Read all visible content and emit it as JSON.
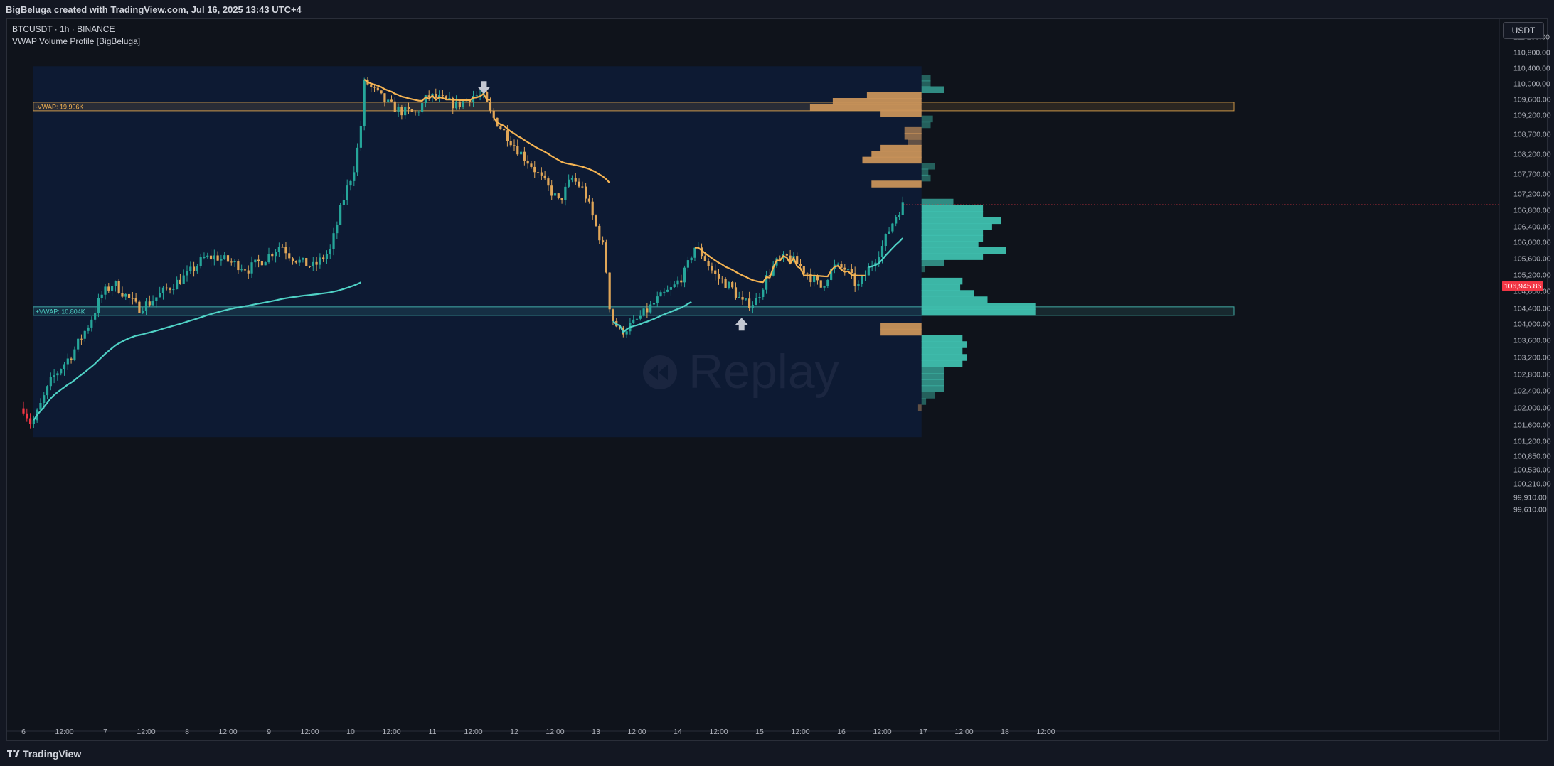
{
  "app": {
    "attribution": "BigBeluga created with TradingView.com, Jul 16, 2025 13:43 UTC+4",
    "brand": "TradingView",
    "brand_icon": "tradingview-logo-icon"
  },
  "header": {
    "symbol_line": "BTCUSDT · 1h · BINANCE",
    "indicator_line": "VWAP Volume Profile [BigBeluga]"
  },
  "currency_button": "USDT",
  "last_price": "106,945.86",
  "watermark": "Replay",
  "watermark_icon": "replay-icon",
  "chart_data": {
    "type": "candlestick",
    "title": "BTCUSDT · 1h · BINANCE",
    "y_axis_ticks": [
      "111,200.00",
      "110,800.00",
      "110,400.00",
      "110,000.00",
      "109,600.00",
      "109,200.00",
      "108,700.00",
      "108,200.00",
      "107,700.00",
      "107,200.00",
      "106,800.00",
      "106,400.00",
      "106,000.00",
      "105,600.00",
      "105,200.00",
      "104,800.00",
      "104,400.00",
      "104,000.00",
      "103,600.00",
      "103,200.00",
      "102,800.00",
      "102,400.00",
      "102,000.00",
      "101,600.00",
      "101,200.00",
      "100,850.00",
      "100,530.00",
      "100,210.00",
      "99,910.00",
      "99,610.00"
    ],
    "x_axis_ticks": [
      "6",
      "12:00",
      "7",
      "12:00",
      "8",
      "12:00",
      "9",
      "12:00",
      "10",
      "12:00",
      "11",
      "12:00",
      "12",
      "12:00",
      "13",
      "12:00",
      "14",
      "12:00",
      "15",
      "12:00",
      "16",
      "12:00",
      "17",
      "12:00",
      "18",
      "12:00"
    ],
    "vwap_labels": {
      "upper": "-VWAP: 19.906K",
      "lower": "+VWAP: 10.804K"
    },
    "upper_vwap_price": 109420,
    "lower_vwap_price": 104330,
    "last_price": 106945.86,
    "colors": {
      "bull": "#26a69a",
      "bear": "#e0a658",
      "pre_window": "#f23645",
      "vwap_up": "#4fd1c5",
      "vwap_down": "#f5b453",
      "profile_up": "#3fbfae",
      "profile_down": "#c8925a",
      "panel": "#0d1a33",
      "background": "#0f131b"
    },
    "signals": [
      {
        "direction": "down",
        "icon": "arrow-down-icon",
        "day": 11.63,
        "price": 109850
      },
      {
        "direction": "up",
        "icon": "arrow-up-icon",
        "day": 14.78,
        "price": 104050
      }
    ],
    "price_path": [
      [
        6.0,
        102000
      ],
      [
        6.1,
        101600
      ],
      [
        6.15,
        101800
      ],
      [
        6.35,
        102700
      ],
      [
        6.6,
        103300
      ],
      [
        6.8,
        104000
      ],
      [
        6.95,
        104700
      ],
      [
        7.1,
        105000
      ],
      [
        7.25,
        104700
      ],
      [
        7.4,
        104400
      ],
      [
        7.55,
        104550
      ],
      [
        7.75,
        104850
      ],
      [
        8.0,
        105200
      ],
      [
        8.2,
        105600
      ],
      [
        8.35,
        105650
      ],
      [
        8.55,
        105500
      ],
      [
        8.75,
        105350
      ],
      [
        8.95,
        105600
      ],
      [
        9.15,
        105950
      ],
      [
        9.25,
        105700
      ],
      [
        9.4,
        105500
      ],
      [
        9.55,
        105400
      ],
      [
        9.75,
        105800
      ],
      [
        9.9,
        107000
      ],
      [
        10.05,
        107900
      ],
      [
        10.12,
        108800
      ],
      [
        10.17,
        110100
      ],
      [
        10.25,
        109900
      ],
      [
        10.45,
        109500
      ],
      [
        10.6,
        109300
      ],
      [
        10.8,
        109250
      ],
      [
        10.95,
        109700
      ],
      [
        11.1,
        109600
      ],
      [
        11.3,
        109450
      ],
      [
        11.5,
        109700
      ],
      [
        11.62,
        109700
      ],
      [
        11.72,
        109200
      ],
      [
        11.9,
        108700
      ],
      [
        12.05,
        108300
      ],
      [
        12.2,
        107950
      ],
      [
        12.4,
        107400
      ],
      [
        12.55,
        107000
      ],
      [
        12.7,
        107600
      ],
      [
        12.85,
        107300
      ],
      [
        13.0,
        106400
      ],
      [
        13.1,
        105800
      ],
      [
        13.18,
        104200
      ],
      [
        13.3,
        103800
      ],
      [
        13.45,
        104000
      ],
      [
        13.6,
        104300
      ],
      [
        13.75,
        104600
      ],
      [
        13.95,
        104900
      ],
      [
        14.1,
        105300
      ],
      [
        14.2,
        105900
      ],
      [
        14.3,
        105700
      ],
      [
        14.45,
        105200
      ],
      [
        14.65,
        104900
      ],
      [
        14.8,
        104500
      ],
      [
        14.95,
        104550
      ],
      [
        15.1,
        105200
      ],
      [
        15.2,
        105500
      ],
      [
        15.35,
        105650
      ],
      [
        15.5,
        105400
      ],
      [
        15.65,
        105100
      ],
      [
        15.75,
        104900
      ],
      [
        15.9,
        105400
      ],
      [
        16.05,
        105350
      ],
      [
        16.2,
        104900
      ],
      [
        16.35,
        105400
      ],
      [
        16.5,
        105900
      ],
      [
        16.6,
        106400
      ],
      [
        16.7,
        106800
      ],
      [
        16.76,
        106950
      ]
    ],
    "window_start_day": 6.12,
    "window_end_day": 16.98,
    "window_price_range": [
      101300,
      110450
    ],
    "profile_rows": [
      {
        "price": 110150,
        "vol": 0.08,
        "dir": "up"
      },
      {
        "price": 110000,
        "vol": 0.08,
        "dir": "up"
      },
      {
        "price": 109850,
        "vol": 0.2,
        "dir": "up"
      },
      {
        "price": 109700,
        "vol": 0.48,
        "dir": "down"
      },
      {
        "price": 109550,
        "vol": 0.78,
        "dir": "down"
      },
      {
        "price": 109400,
        "vol": 0.98,
        "dir": "down"
      },
      {
        "price": 109250,
        "vol": 0.36,
        "dir": "down"
      },
      {
        "price": 109100,
        "vol": 0.1,
        "dir": "up"
      },
      {
        "price": 108950,
        "vol": 0.08,
        "dir": "up"
      },
      {
        "price": 108800,
        "vol": 0.15,
        "dir": "down"
      },
      {
        "price": 108650,
        "vol": 0.15,
        "dir": "down"
      },
      {
        "price": 108500,
        "vol": 0.12,
        "dir": "down"
      },
      {
        "price": 108350,
        "vol": 0.36,
        "dir": "down"
      },
      {
        "price": 108200,
        "vol": 0.44,
        "dir": "down"
      },
      {
        "price": 108050,
        "vol": 0.52,
        "dir": "down"
      },
      {
        "price": 107900,
        "vol": 0.12,
        "dir": "up"
      },
      {
        "price": 107750,
        "vol": 0.06,
        "dir": "up"
      },
      {
        "price": 107600,
        "vol": 0.08,
        "dir": "up"
      },
      {
        "price": 107450,
        "vol": 0.44,
        "dir": "down"
      },
      {
        "price": 107000,
        "vol": 0.28,
        "dir": "up"
      },
      {
        "price": 106850,
        "vol": 0.54,
        "dir": "up"
      },
      {
        "price": 106700,
        "vol": 0.54,
        "dir": "up"
      },
      {
        "price": 106550,
        "vol": 0.7,
        "dir": "up"
      },
      {
        "price": 106400,
        "vol": 0.62,
        "dir": "up"
      },
      {
        "price": 106250,
        "vol": 0.54,
        "dir": "up"
      },
      {
        "price": 106100,
        "vol": 0.54,
        "dir": "up"
      },
      {
        "price": 105950,
        "vol": 0.5,
        "dir": "up"
      },
      {
        "price": 105800,
        "vol": 0.74,
        "dir": "up"
      },
      {
        "price": 105650,
        "vol": 0.54,
        "dir": "up"
      },
      {
        "price": 105500,
        "vol": 0.2,
        "dir": "up"
      },
      {
        "price": 105350,
        "vol": 0.03,
        "dir": "up"
      },
      {
        "price": 105050,
        "vol": 0.36,
        "dir": "up"
      },
      {
        "price": 104900,
        "vol": 0.34,
        "dir": "up"
      },
      {
        "price": 104750,
        "vol": 0.46,
        "dir": "up"
      },
      {
        "price": 104600,
        "vol": 0.58,
        "dir": "up"
      },
      {
        "price": 104450,
        "vol": 1.0,
        "dir": "up"
      },
      {
        "price": 104300,
        "vol": 1.0,
        "dir": "up"
      },
      {
        "price": 103950,
        "vol": 0.36,
        "dir": "down"
      },
      {
        "price": 103800,
        "vol": 0.36,
        "dir": "down"
      },
      {
        "price": 103650,
        "vol": 0.36,
        "dir": "up"
      },
      {
        "price": 103500,
        "vol": 0.4,
        "dir": "up"
      },
      {
        "price": 103350,
        "vol": 0.36,
        "dir": "up"
      },
      {
        "price": 103200,
        "vol": 0.4,
        "dir": "up"
      },
      {
        "price": 103050,
        "vol": 0.36,
        "dir": "up"
      },
      {
        "price": 102900,
        "vol": 0.2,
        "dir": "up"
      },
      {
        "price": 102750,
        "vol": 0.2,
        "dir": "up"
      },
      {
        "price": 102600,
        "vol": 0.2,
        "dir": "up"
      },
      {
        "price": 102450,
        "vol": 0.2,
        "dir": "up"
      },
      {
        "price": 102300,
        "vol": 0.12,
        "dir": "up"
      },
      {
        "price": 102150,
        "vol": 0.04,
        "dir": "up"
      },
      {
        "price": 102000,
        "vol": 0.03,
        "dir": "down"
      }
    ]
  }
}
